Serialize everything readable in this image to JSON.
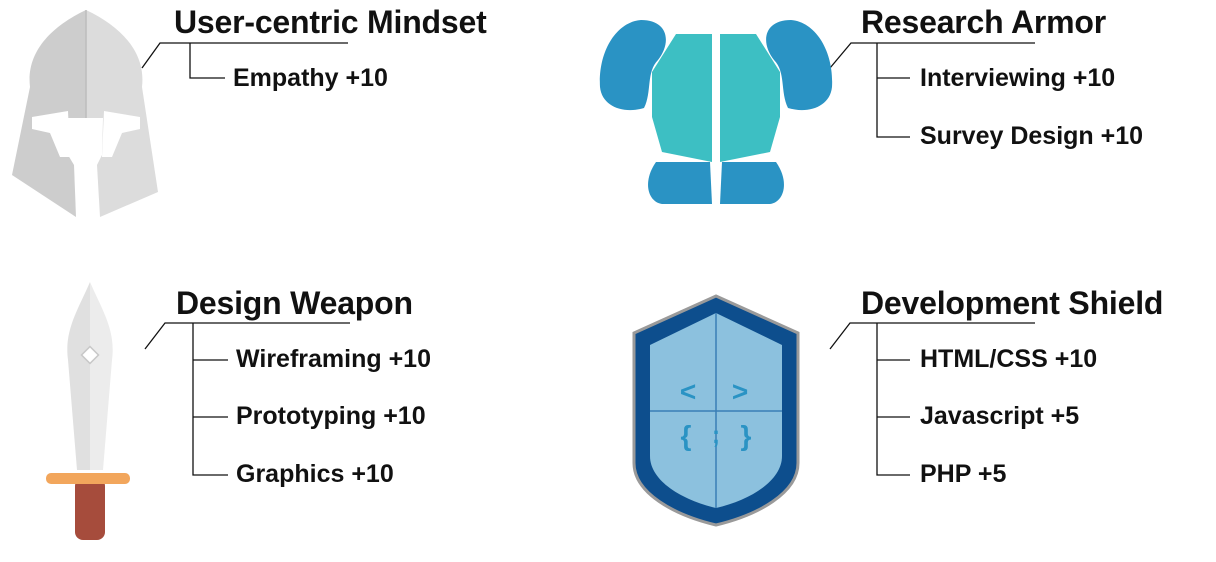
{
  "sections": [
    {
      "title": "User-centric Mindset",
      "skills": [
        "Empathy +10"
      ],
      "icon": "helmet-icon"
    },
    {
      "title": "Research Armor",
      "skills": [
        "Interviewing +10",
        "Survey Design +10"
      ],
      "icon": "armor-icon"
    },
    {
      "title": "Design Weapon",
      "skills": [
        "Wireframing +10",
        "Prototyping +10",
        "Graphics +10"
      ],
      "icon": "sword-icon"
    },
    {
      "title": "Development Shield",
      "skills": [
        "HTML/CSS +10",
        "Javascript +5",
        "PHP +5"
      ],
      "icon": "shield-icon"
    }
  ],
  "shield_glyphs": [
    "<",
    ">",
    "{",
    ";",
    "}"
  ],
  "colors": {
    "helmet": "#dcdcdc",
    "armor_body": "#3dbfc3",
    "armor_pads": "#2a93c4",
    "shield_outer": "#0d4e8d",
    "shield_inner": "#8cc1de",
    "sword_blade": "#e4e4e4",
    "sword_guard": "#f2a65c",
    "sword_grip": "#a64c3c"
  }
}
